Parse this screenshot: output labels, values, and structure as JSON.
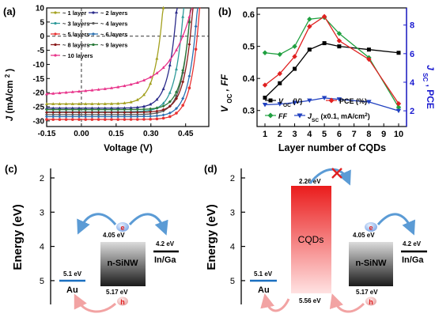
{
  "panels": {
    "a": {
      "label": "(a)",
      "xlabel": "Voltage (V)",
      "ylabel_main": "J",
      "ylabel_unit": "(mA/cm",
      "ylabel_sup": "2",
      "ylabel_close": ")",
      "xticks": [
        "-0.15",
        "0.00",
        "0.15",
        "0.30",
        "0.45"
      ],
      "yticks": [
        "10",
        "5",
        "0",
        "-5",
        "-10",
        "-15",
        "-20",
        "-25",
        "-30"
      ]
    },
    "b": {
      "label": "(b)",
      "xlabel": "Layer number of CQDs",
      "ylabel_left": "V",
      "ylabel_left_sub": "OC",
      "ylabel_left_tail": ", FF",
      "ylabel_right": "J",
      "ylabel_right_sub": "SC",
      "ylabel_right_tail": ", PCE",
      "xticks": [
        "1",
        "2",
        "3",
        "4",
        "5",
        "6",
        "7",
        "8",
        "9",
        "10"
      ],
      "yticks_left": [
        "0.6",
        "0.5",
        "0.4",
        "0.3"
      ],
      "yticks_right": [
        "8",
        "6",
        "4",
        "2"
      ],
      "legend": {
        "voc": "V",
        "voc_sub": "OC",
        "voc_tail": " (V)",
        "pce": "PCE (%)",
        "ff": "FF",
        "jsc": "J",
        "jsc_sub": "SC",
        "jsc_tail": " (x0.1, mA/cm",
        "jsc_sup": "2",
        "jsc_close": ")"
      }
    },
    "c": {
      "label": "(c)",
      "ylabel": "Energy (eV)",
      "yticks": [
        "2",
        "3",
        "4",
        "5"
      ],
      "au_value": "5.1 eV",
      "au_label": "Au",
      "cb_value": "4.05 eV",
      "sinw_label": "n-SiNW",
      "vb_value": "5.17 eV",
      "ingaval": "4.2 eV",
      "inga_label": "In/Ga",
      "electron": "e",
      "hole": "h"
    },
    "d": {
      "label": "(d)",
      "ylabel": "Energy (eV)",
      "yticks": [
        "2",
        "3",
        "4",
        "5"
      ],
      "au_value": "5.1 eV",
      "au_label": "Au",
      "cqd_top": "2.26 eV",
      "cqd_label": "CQDs",
      "cqd_bottom": "5.56 eV",
      "cb_value": "4.05 eV",
      "sinw_label": "n-SiNW",
      "vb_value": "5.17 eV",
      "ingaval": "4.2 eV",
      "inga_label": "In/Ga",
      "electron": "e",
      "hole": "h"
    }
  },
  "colors": {
    "curves": [
      "#a3a01e",
      "#2a2a8a",
      "#2e9a9a",
      "#5a5a5a",
      "#e83232",
      "#2a6fb0",
      "#8a1a1a",
      "#2a7a3a",
      "#e8338a"
    ],
    "voc": "#000000",
    "pce": "#e02020",
    "ff": "#20a040",
    "jsc": "#2040c0",
    "right_axis": "#1a1ad0",
    "au": "#1a6fc0",
    "cqd_top": "#e82020",
    "cqd_bottom": "#ffd8d8"
  },
  "chart_data": [
    {
      "type": "line",
      "xlabel": "Voltage (V)",
      "ylabel": "J (mA/cm2)",
      "xlim": [
        -0.15,
        0.55
      ],
      "ylim": [
        -32,
        10
      ],
      "series": [
        {
          "name": "~ 1 layer",
          "jsc": 24.0,
          "voc": 0.34
        },
        {
          "name": "~ 2 layers",
          "jsc": 25.5,
          "voc": 0.4
        },
        {
          "name": "~ 3 layers",
          "jsc": 26.8,
          "voc": 0.43
        },
        {
          "name": "~ 4 layers",
          "jsc": 27.8,
          "voc": 0.46
        },
        {
          "name": "~ 5 layers",
          "jsc": 29.5,
          "voc": 0.5
        },
        {
          "name": "~ 6 layers",
          "jsc": 28.5,
          "voc": 0.49
        },
        {
          "name": "~ 8 layers",
          "jsc": 27.0,
          "voc": 0.47
        },
        {
          "name": "~ 9 layers",
          "jsc": 26.0,
          "voc": 0.46
        },
        {
          "name": "~ 10 layers",
          "jsc": 19.5,
          "voc": 0.45
        }
      ]
    },
    {
      "type": "line",
      "xlabel": "Layer number of CQDs",
      "ylabel_left": "VOC, FF",
      "ylabel_right": "JSC, PCE",
      "x": [
        1,
        2,
        3,
        4,
        5,
        6,
        8,
        10
      ],
      "ylim_left": [
        0.25,
        0.62
      ],
      "ylim_right": [
        0.9,
        9.2
      ],
      "series": [
        {
          "name": "VOC (V)",
          "axis": "left",
          "values": [
            0.34,
            0.385,
            0.43,
            0.49,
            0.51,
            0.5,
            0.49,
            0.48
          ]
        },
        {
          "name": "FF",
          "axis": "left",
          "values": [
            0.48,
            0.475,
            0.5,
            0.585,
            0.59,
            0.54,
            0.465,
            0.31
          ]
        },
        {
          "name": "PCE (%)",
          "axis": "right",
          "values": [
            3.8,
            4.6,
            5.8,
            7.9,
            8.6,
            6.9,
            5.6,
            2.5
          ]
        },
        {
          "name": "JSC (x0.1, mA/cm2)",
          "axis": "right",
          "values": [
            2.42,
            2.47,
            2.57,
            2.72,
            2.9,
            2.8,
            2.62,
            2.0
          ]
        }
      ]
    }
  ]
}
